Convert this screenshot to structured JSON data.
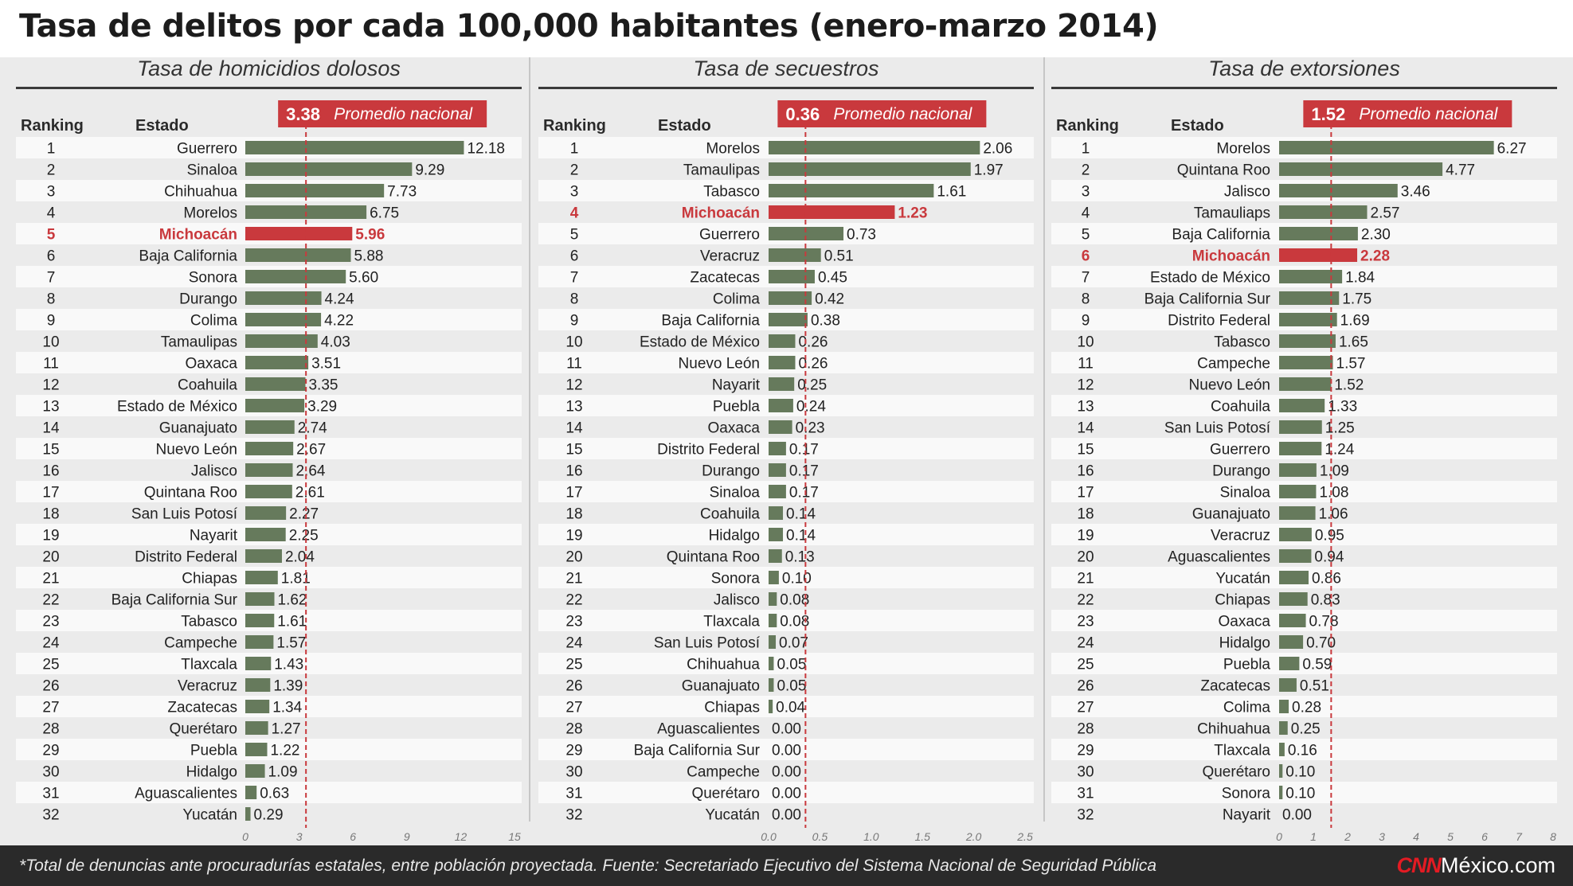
{
  "title": "Tasa de delitos por cada 100,000 habitantes (enero-marzo 2014)",
  "column_headers": {
    "ranking": "Ranking",
    "estado": "Estado"
  },
  "colors": {
    "bar": "#667a5c",
    "highlight": "#c9393d",
    "badge": "#c9393d",
    "average_line": "#c9393d",
    "row_band": "#f9f9f9"
  },
  "footer": {
    "note": "*Total de denuncias ante procuradurías estatales, entre población proyectada.   Fuente: Secretariado Ejecutivo del Sistema Nacional de Seguridad Pública",
    "brand_cnn": "CNN",
    "brand_rest": "México.com"
  },
  "chart_data": [
    {
      "type": "bar",
      "title": "Tasa de homicidios dolosos",
      "average": {
        "value": 3.38,
        "label": "3.38",
        "caption": "Promedio nacional"
      },
      "highlight": "Michoacán",
      "xlim": [
        0,
        15
      ],
      "xticks": [
        "0",
        "3",
        "6",
        "9",
        "12",
        "15"
      ],
      "ranks": [
        "1",
        "2",
        "3",
        "4",
        "5",
        "6",
        "7",
        "8",
        "9",
        "10",
        "11",
        "12",
        "13",
        "14",
        "15",
        "16",
        "17",
        "18",
        "19",
        "20",
        "21",
        "22",
        "23",
        "24",
        "25",
        "26",
        "27",
        "28",
        "29",
        "30",
        "31",
        "32"
      ],
      "categories": [
        "Guerrero",
        "Sinaloa",
        "Chihuahua",
        "Morelos",
        "Michoacán",
        "Baja California",
        "Sonora",
        "Durango",
        "Colima",
        "Tamaulipas",
        "Oaxaca",
        "Coahuila",
        "Estado de México",
        "Guanajuato",
        "Nuevo León",
        "Jalisco",
        "Quintana Roo",
        "San Luis Potosí",
        "Nayarit",
        "Distrito Federal",
        "Chiapas",
        "Baja California Sur",
        "Tabasco",
        "Campeche",
        "Tlaxcala",
        "Veracruz",
        "Zacatecas",
        "Querétaro",
        "Puebla",
        "Hidalgo",
        "Aguascalientes",
        "Yucatán"
      ],
      "values": [
        12.18,
        9.29,
        7.73,
        6.75,
        5.96,
        5.88,
        5.6,
        4.24,
        4.22,
        4.03,
        3.51,
        3.35,
        3.29,
        2.74,
        2.67,
        2.64,
        2.61,
        2.27,
        2.25,
        2.04,
        1.81,
        1.62,
        1.61,
        1.57,
        1.43,
        1.39,
        1.34,
        1.27,
        1.22,
        1.09,
        0.63,
        0.29
      ],
      "value_labels": [
        "12.18",
        "9.29",
        "7.73",
        "6.75",
        "5.96",
        "5.88",
        "5.60",
        "4.24",
        "4.22",
        "4.03",
        "3.51",
        "3.35",
        "3.29",
        "2.74",
        "2.67",
        "2.64",
        "2.61",
        "2.27",
        "2.25",
        "2.04",
        "1.81",
        "1.62",
        "1.61",
        "1.57",
        "1.43",
        "1.39",
        "1.34",
        "1.27",
        "1.22",
        "1.09",
        "0.63",
        "0.29"
      ]
    },
    {
      "type": "bar",
      "title": "Tasa de secuestros",
      "average": {
        "value": 0.36,
        "label": "0.36",
        "caption": "Promedio nacional"
      },
      "highlight": "Michoacán",
      "xlim": [
        0,
        2.5
      ],
      "xticks": [
        "0.0",
        "0.5",
        "1.0",
        "1.5",
        "2.0",
        "2.5"
      ],
      "ranks": [
        "1",
        "2",
        "3",
        "4",
        "5",
        "6",
        "7",
        "8",
        "9",
        "10",
        "11",
        "12",
        "13",
        "14",
        "15",
        "16",
        "17",
        "18",
        "19",
        "20",
        "21",
        "22",
        "23",
        "24",
        "25",
        "26",
        "27",
        "28",
        "29",
        "30",
        "31",
        "32"
      ],
      "categories": [
        "Morelos",
        "Tamaulipas",
        "Tabasco",
        "Michoacán",
        "Guerrero",
        "Veracruz",
        "Zacatecas",
        "Colima",
        "Baja California",
        "Estado de México",
        "Nuevo León",
        "Nayarit",
        "Puebla",
        "Oaxaca",
        "Distrito Federal",
        "Durango",
        "Sinaloa",
        "Coahuila",
        "Hidalgo",
        "Quintana Roo",
        "Sonora",
        "Jalisco",
        "Tlaxcala",
        "San Luis Potosí",
        "Chihuahua",
        "Guanajuato",
        "Chiapas",
        "Aguascalientes",
        "Baja California Sur",
        "Campeche",
        "Querétaro",
        "Yucatán"
      ],
      "values": [
        2.06,
        1.97,
        1.61,
        1.23,
        0.73,
        0.51,
        0.45,
        0.42,
        0.38,
        0.26,
        0.26,
        0.25,
        0.24,
        0.23,
        0.17,
        0.17,
        0.17,
        0.14,
        0.14,
        0.13,
        0.1,
        0.08,
        0.08,
        0.07,
        0.05,
        0.05,
        0.04,
        0.0,
        0.0,
        0.0,
        0.0,
        0.0
      ],
      "value_labels": [
        "2.06",
        "1.97",
        "1.61",
        "1.23",
        "0.73",
        "0.51",
        "0.45",
        "0.42",
        "0.38",
        "0.26",
        "0.26",
        "0.25",
        "0.24",
        "0.23",
        "0.17",
        "0.17",
        "0.17",
        "0.14",
        "0.14",
        "0.13",
        "0.10",
        "0.08",
        "0.08",
        "0.07",
        "0.05",
        "0.05",
        "0.04",
        "0.00",
        "0.00",
        "0.00",
        "0.00",
        "0.00"
      ]
    },
    {
      "type": "bar",
      "title": "Tasa de extorsiones",
      "average": {
        "value": 1.52,
        "label": "1.52",
        "caption": "Promedio nacional"
      },
      "highlight": "Michoacán",
      "xlim": [
        0,
        8
      ],
      "xticks": [
        "0",
        "1",
        "2",
        "3",
        "4",
        "5",
        "6",
        "7",
        "8"
      ],
      "ranks": [
        "1",
        "2",
        "3",
        "4",
        "5",
        "6",
        "7",
        "8",
        "9",
        "10",
        "11",
        "12",
        "13",
        "14",
        "15",
        "16",
        "17",
        "18",
        "19",
        "20",
        "21",
        "22",
        "23",
        "24",
        "25",
        "26",
        "27",
        "28",
        "29",
        "30",
        "31",
        "32"
      ],
      "categories": [
        "Morelos",
        "Quintana Roo",
        "Jalisco",
        "Tamauliaps",
        "Baja California",
        "Michoacán",
        "Estado de México",
        "Baja California Sur",
        "Distrito Federal",
        "Tabasco",
        "Campeche",
        "Nuevo León",
        "Coahuila",
        "San Luis Potosí",
        "Guerrero",
        "Durango",
        "Sinaloa",
        "Guanajuato",
        "Veracruz",
        "Aguascalientes",
        "Yucatán",
        "Chiapas",
        "Oaxaca",
        "Hidalgo",
        "Puebla",
        "Zacatecas",
        "Colima",
        "Chihuahua",
        "Tlaxcala",
        "Querétaro",
        "Sonora",
        "Nayarit"
      ],
      "values": [
        6.27,
        4.77,
        3.46,
        2.57,
        2.3,
        2.28,
        1.84,
        1.75,
        1.69,
        1.65,
        1.57,
        1.52,
        1.33,
        1.25,
        1.24,
        1.09,
        1.08,
        1.06,
        0.95,
        0.94,
        0.86,
        0.83,
        0.78,
        0.7,
        0.59,
        0.51,
        0.28,
        0.25,
        0.16,
        0.1,
        0.1,
        0.0
      ],
      "value_labels": [
        "6.27",
        "4.77",
        "3.46",
        "2.57",
        "2.30",
        "2.28",
        "1.84",
        "1.75",
        "1.69",
        "1.65",
        "1.57",
        "1.52",
        "1.33",
        "1.25",
        "1.24",
        "1.09",
        "1.08",
        "1.06",
        "0.95",
        "0.94",
        "0.86",
        "0.83",
        "0.78",
        "0.70",
        "0.59",
        "0.51",
        "0.28",
        "0.25",
        "0.16",
        "0.10",
        "0.10",
        "0.00"
      ]
    }
  ]
}
